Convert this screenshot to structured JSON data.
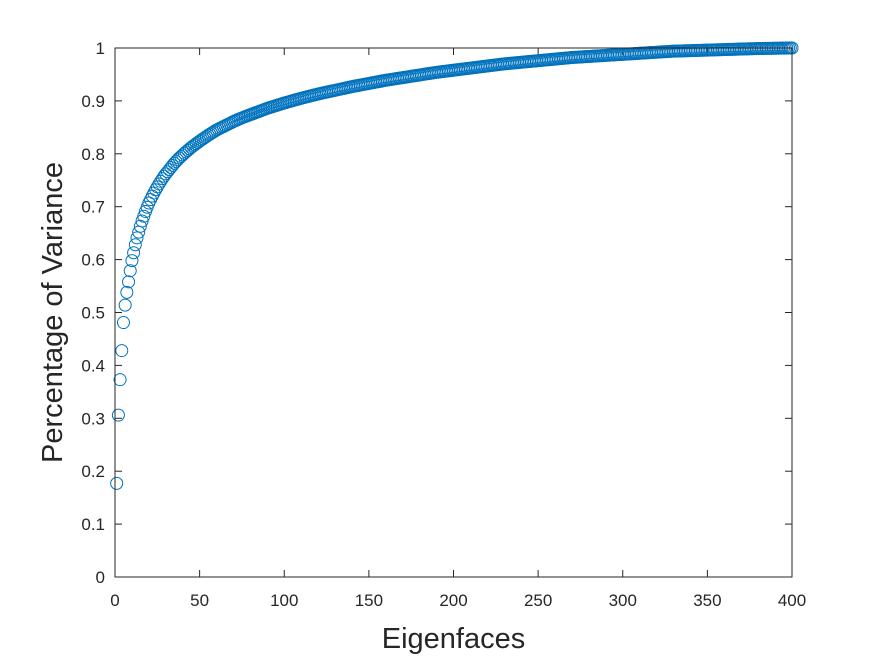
{
  "chart_data": {
    "type": "scatter",
    "title": "",
    "xlabel": "Eigenfaces",
    "ylabel": "Percentage of Variance",
    "xlim": [
      0,
      400
    ],
    "ylim": [
      0,
      1
    ],
    "x_ticks": [
      0,
      50,
      100,
      150,
      200,
      250,
      300,
      350,
      400
    ],
    "y_ticks": [
      0,
      0.1,
      0.2,
      0.3,
      0.4,
      0.5,
      0.6,
      0.7,
      0.8,
      0.9,
      1
    ],
    "grid": false,
    "marker": "open-circle",
    "series_color": "#0072BD",
    "series": [
      {
        "x": [
          1,
          2,
          3,
          4,
          5,
          6,
          7,
          8,
          9,
          10,
          11,
          12,
          13,
          14,
          15,
          16,
          17,
          18,
          19,
          20,
          22,
          24,
          26,
          28,
          30,
          32,
          35,
          38,
          41,
          45,
          50,
          55,
          60,
          65,
          70,
          75,
          80,
          90,
          100,
          110,
          120,
          130,
          140,
          150,
          160,
          170,
          180,
          190,
          200,
          210,
          220,
          230,
          240,
          250,
          260,
          270,
          280,
          290,
          300,
          310,
          320,
          330,
          340,
          350,
          360,
          370,
          380,
          390,
          400
        ],
        "y": [
          0.177,
          0.306,
          0.373,
          0.428,
          0.481,
          0.514,
          0.538,
          0.558,
          0.579,
          0.598,
          0.613,
          0.628,
          0.641,
          0.652,
          0.663,
          0.673,
          0.682,
          0.691,
          0.699,
          0.707,
          0.72,
          0.732,
          0.743,
          0.753,
          0.762,
          0.77,
          0.782,
          0.792,
          0.801,
          0.812,
          0.824,
          0.835,
          0.845,
          0.853,
          0.861,
          0.868,
          0.874,
          0.886,
          0.896,
          0.905,
          0.913,
          0.92,
          0.927,
          0.933,
          0.939,
          0.944,
          0.949,
          0.954,
          0.958,
          0.962,
          0.966,
          0.97,
          0.973,
          0.976,
          0.979,
          0.982,
          0.984,
          0.986,
          0.988,
          0.99,
          0.992,
          0.994,
          0.995,
          0.996,
          0.997,
          0.998,
          0.999,
          0.9995,
          1.0
        ]
      }
    ]
  }
}
